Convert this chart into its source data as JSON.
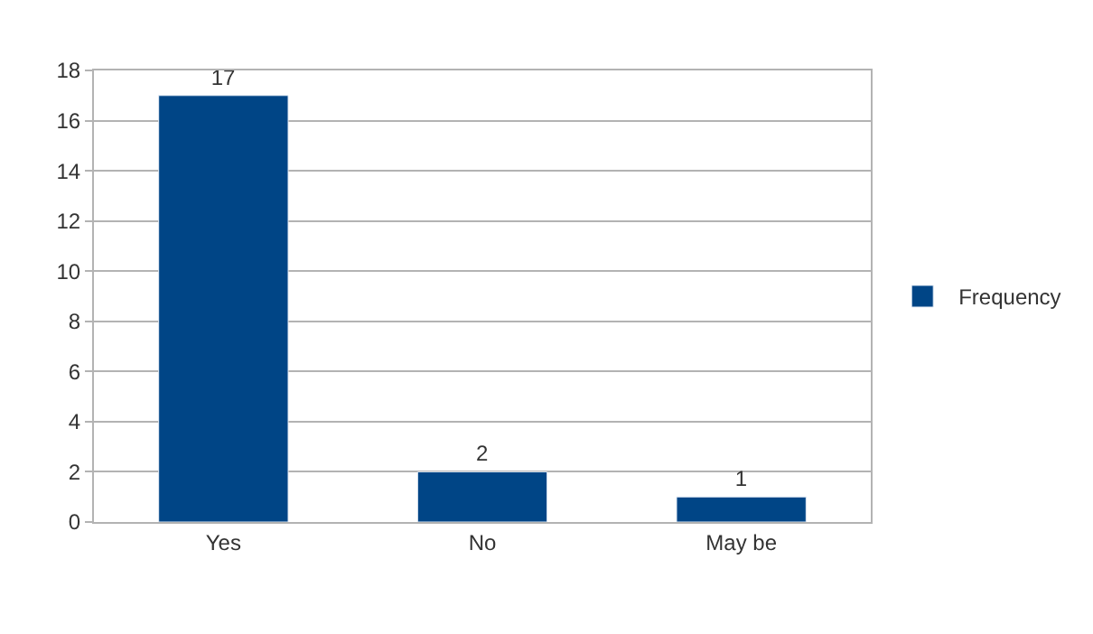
{
  "chart_data": {
    "type": "bar",
    "categories": [
      "Yes",
      "No",
      "May be"
    ],
    "series": [
      {
        "name": "Frequency",
        "color": "#004586",
        "values": [
          17,
          2,
          1
        ]
      }
    ],
    "ylim": [
      0,
      18
    ],
    "yticks": [
      0,
      2,
      4,
      6,
      8,
      10,
      12,
      14,
      16,
      18
    ],
    "grid": "y",
    "legend": "right",
    "data_labels": true
  }
}
